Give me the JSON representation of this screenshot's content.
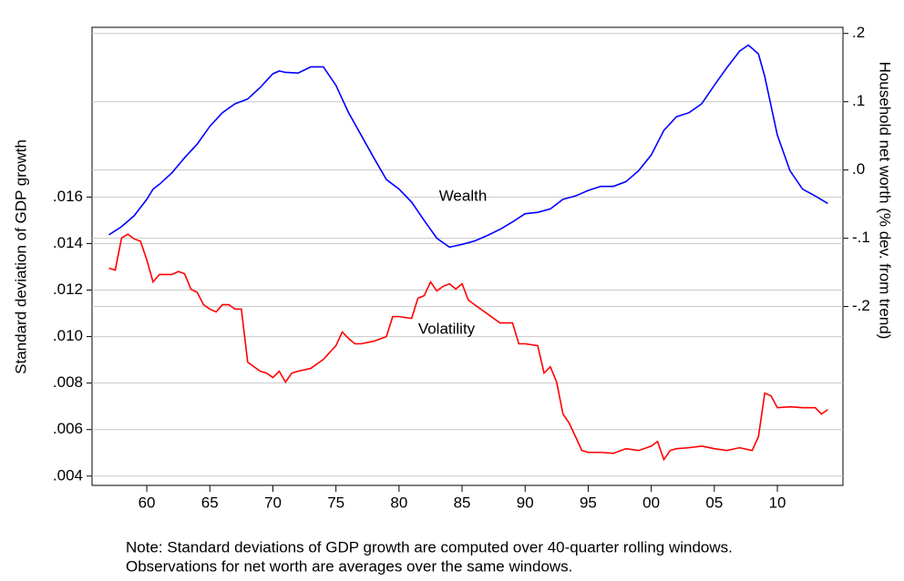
{
  "chart_data": {
    "type": "line",
    "y_label": "Standard deviation of GDP growth",
    "y2_label": "Household net worth (% dev. from trend)",
    "note": [
      "Note: Standard deviations of GDP growth are computed over 40-quarter rolling windows.",
      "Observations for net worth are averages over the same windows."
    ],
    "xlim": [
      1955.66,
      2015.2
    ],
    "xticks": [
      {
        "value": 1960,
        "label": "60"
      },
      {
        "value": 1965,
        "label": "65"
      },
      {
        "value": 1970,
        "label": "70"
      },
      {
        "value": 1975,
        "label": "75"
      },
      {
        "value": 1980,
        "label": "80"
      },
      {
        "value": 1985,
        "label": "85"
      },
      {
        "value": 1990,
        "label": "90"
      },
      {
        "value": 1995,
        "label": "95"
      },
      {
        "value": 2000,
        "label": "00"
      },
      {
        "value": 2005,
        "label": "05"
      },
      {
        "value": 2010,
        "label": "10"
      }
    ],
    "ylim": [
      0.0036,
      0.0233
    ],
    "yticks": [
      {
        "value": 0.004,
        "label": ".004"
      },
      {
        "value": 0.006,
        "label": ".006"
      },
      {
        "value": 0.008,
        "label": ".008"
      },
      {
        "value": 0.01,
        "label": ".010"
      },
      {
        "value": 0.012,
        "label": ".012"
      },
      {
        "value": 0.014,
        "label": ".014"
      },
      {
        "value": 0.016,
        "label": ".016"
      }
    ],
    "y2lim": [
      -0.462,
      0.209
    ],
    "y2ticks": [
      {
        "value": 0.2,
        "label": ".2"
      },
      {
        "value": 0.1,
        "label": ".1"
      },
      {
        "value": 0,
        "label": ".0"
      },
      {
        "value": -0.1,
        "label": "-.1"
      },
      {
        "value": -0.2,
        "label": "-.2"
      }
    ],
    "grid": true,
    "series": [
      {
        "name": "Wealth",
        "color": "#0000ff",
        "axis": "y2",
        "x": [
          1957,
          1958,
          1959,
          1960,
          1960.5,
          1961,
          1962,
          1963,
          1964,
          1965,
          1966,
          1967,
          1968,
          1969,
          1970,
          1970.5,
          1971,
          1972,
          1973,
          1974,
          1975,
          1976,
          1977,
          1978,
          1979,
          1980,
          1981,
          1982,
          1983,
          1984,
          1985,
          1986,
          1987,
          1988,
          1989,
          1990,
          1991,
          1992,
          1993,
          1994,
          1995,
          1996,
          1997,
          1998,
          1999,
          2000,
          2001,
          2002,
          2003,
          2004,
          2005,
          2006,
          2007,
          2007.7,
          2008.5,
          2009,
          2010,
          2011,
          2012,
          2013,
          2014
        ],
        "values": [
          -0.095,
          -0.083,
          -0.067,
          -0.043,
          -0.028,
          -0.021,
          -0.004,
          0.018,
          0.038,
          0.064,
          0.084,
          0.097,
          0.104,
          0.121,
          0.141,
          0.145,
          0.143,
          0.142,
          0.151,
          0.151,
          0.124,
          0.084,
          0.051,
          0.018,
          -0.014,
          -0.028,
          -0.047,
          -0.074,
          -0.1,
          -0.113,
          -0.109,
          -0.104,
          -0.096,
          -0.087,
          -0.076,
          -0.064,
          -0.062,
          -0.057,
          -0.043,
          -0.038,
          -0.03,
          -0.024,
          -0.024,
          -0.017,
          -0.001,
          0.022,
          0.058,
          0.078,
          0.084,
          0.097,
          0.124,
          0.15,
          0.174,
          0.183,
          0.17,
          0.137,
          0.051,
          -0.001,
          -0.028,
          -0.038,
          -0.049
        ]
      },
      {
        "name": "Volatility",
        "color": "#ff0000",
        "x": [
          1957,
          1957.5,
          1958,
          1958.5,
          1959,
          1959.5,
          1960,
          1960.5,
          1961,
          1962,
          1962.5,
          1963,
          1963.5,
          1964,
          1964.5,
          1965,
          1965.5,
          1966,
          1966.5,
          1967,
          1967.5,
          1968,
          1968.5,
          1969,
          1969.5,
          1970,
          1970.5,
          1971,
          1971.5,
          1972,
          1973,
          1974,
          1975,
          1975.5,
          1976,
          1976.5,
          1977,
          1978,
          1979,
          1979.5,
          1980,
          1981,
          1981.5,
          1982,
          1982.5,
          1983,
          1983.5,
          1984,
          1984.5,
          1985,
          1985.5,
          1986,
          1987,
          1988,
          1989,
          1989.5,
          1990,
          1991,
          1991.5,
          1992,
          1992.5,
          1993,
          1993.5,
          1994,
          1994.5,
          1995,
          1996,
          1997,
          1998,
          1999,
          2000,
          2000.5,
          2001,
          2001.5,
          2002,
          2003,
          2004,
          2005,
          2006,
          2007,
          2008,
          2008.5,
          2009,
          2009.5,
          2010,
          2011,
          2012,
          2013,
          2013.5,
          2014
        ],
        "values": [
          0.01294,
          0.01286,
          0.01424,
          0.0144,
          0.0142,
          0.0141,
          0.0133,
          0.01235,
          0.01267,
          0.01267,
          0.0128,
          0.0127,
          0.01204,
          0.0119,
          0.01137,
          0.01118,
          0.01106,
          0.01137,
          0.01137,
          0.01118,
          0.01118,
          0.0089,
          0.0087,
          0.00851,
          0.00843,
          0.00824,
          0.00851,
          0.00804,
          0.00843,
          0.00851,
          0.00863,
          0.00902,
          0.00961,
          0.0102,
          0.00992,
          0.00969,
          0.00969,
          0.0098,
          0.01,
          0.01086,
          0.01086,
          0.01078,
          0.01165,
          0.01176,
          0.01235,
          0.01196,
          0.01216,
          0.01227,
          0.01204,
          0.01227,
          0.01157,
          0.01137,
          0.01098,
          0.01059,
          0.01059,
          0.00969,
          0.00969,
          0.00961,
          0.00843,
          0.0087,
          0.00804,
          0.00667,
          0.00627,
          0.00569,
          0.0051,
          0.00502,
          0.00502,
          0.00498,
          0.00518,
          0.0051,
          0.00529,
          0.00549,
          0.00471,
          0.0051,
          0.00518,
          0.00522,
          0.00529,
          0.00518,
          0.0051,
          0.00522,
          0.0051,
          0.00569,
          0.00757,
          0.00745,
          0.00694,
          0.00698,
          0.00694,
          0.00694,
          0.00667,
          0.00686
        ]
      }
    ]
  }
}
